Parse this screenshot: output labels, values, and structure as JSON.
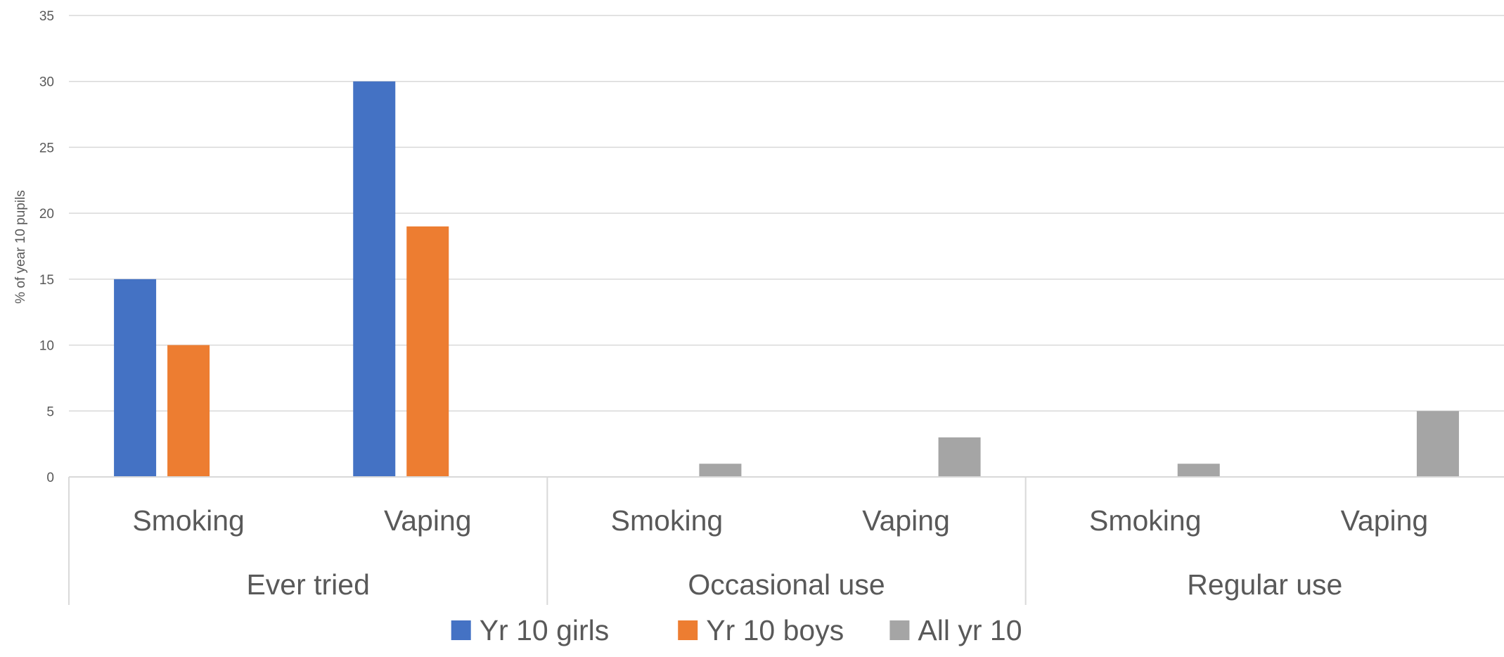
{
  "chart_data": {
    "type": "bar",
    "title": "",
    "ylabel": "% of year 10 pupils",
    "ylim": [
      0,
      35
    ],
    "yticks": [
      0,
      5,
      10,
      15,
      20,
      25,
      30,
      35
    ],
    "grid": true,
    "legend_position": "bottom",
    "groups": [
      {
        "label": "Ever tried",
        "categories": [
          "Smoking",
          "Vaping"
        ]
      },
      {
        "label": "Occasional use",
        "categories": [
          "Smoking",
          "Vaping"
        ]
      },
      {
        "label": "Regular use",
        "categories": [
          "Smoking",
          "Vaping"
        ]
      }
    ],
    "series": [
      {
        "name": "Yr 10 girls",
        "color": "#4472C4",
        "values": [
          15,
          30,
          null,
          null,
          null,
          null
        ]
      },
      {
        "name": "Yr 10 boys",
        "color": "#ED7D31",
        "values": [
          10,
          19,
          null,
          null,
          null,
          null
        ]
      },
      {
        "name": "All yr 10",
        "color": "#A5A5A5",
        "values": [
          null,
          null,
          1,
          3,
          1,
          5
        ]
      }
    ]
  }
}
